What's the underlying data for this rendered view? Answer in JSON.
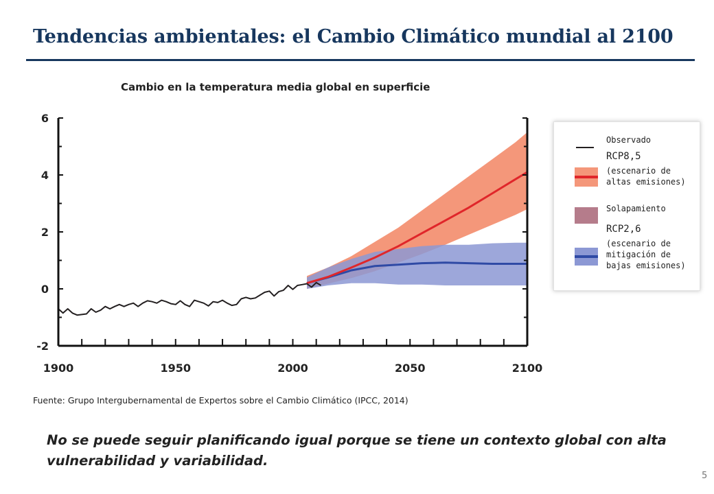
{
  "slide": {
    "title": "Tendencias ambientales: el Cambio Climático mundial al 2100",
    "source": "Fuente: Grupo Intergubernamental de Expertos sobre el Cambio Climático (IPCC, 2014)",
    "conclusion": "No se puede seguir planificando igual porque se tiene un contexto global con alta vulnerabilidad y variabilidad.",
    "page_number": "5"
  },
  "legend": {
    "observed": "Observado",
    "rcp85": {
      "name": "RCP8,5",
      "desc": [
        "(escenario de",
        "altas emisiones)"
      ]
    },
    "overlap": "Solapamiento",
    "rcp26": {
      "name": "RCP2,6",
      "desc": [
        "(escenario de",
        "mitigación de",
        "bajas emisiones)"
      ]
    }
  },
  "colors": {
    "title": "#17375e",
    "observed": "#231f20",
    "rcp85_line": "#e0262a",
    "rcp85_band": "#f4977a",
    "rcp26_line": "#2f4aa5",
    "rcp26_band": "#8c98d4",
    "overlap": "#b57c8b"
  },
  "chart_data": {
    "type": "line",
    "title": "Cambio en la temperatura media global en superficie",
    "xlim": [
      1900,
      2100
    ],
    "ylim": [
      -2,
      6
    ],
    "x_ticks": [
      "1900",
      "1950",
      "2000",
      "2050",
      "2100"
    ],
    "y_ticks": [
      "-2",
      "0",
      "2",
      "4",
      "6"
    ],
    "grid": false,
    "legend_position": "right",
    "series": [
      {
        "name": "Observado",
        "x": [
          1900,
          1902,
          1904,
          1906,
          1908,
          1910,
          1912,
          1914,
          1916,
          1918,
          1920,
          1922,
          1924,
          1926,
          1928,
          1930,
          1932,
          1934,
          1936,
          1938,
          1940,
          1942,
          1944,
          1946,
          1948,
          1950,
          1952,
          1954,
          1956,
          1958,
          1960,
          1962,
          1964,
          1966,
          1968,
          1970,
          1972,
          1974,
          1976,
          1978,
          1980,
          1982,
          1984,
          1986,
          1988,
          1990,
          1992,
          1994,
          1996,
          1998,
          2000,
          2002,
          2004,
          2006,
          2008,
          2010,
          2012
        ],
        "y": [
          -0.7,
          -0.85,
          -0.7,
          -0.85,
          -0.92,
          -0.9,
          -0.88,
          -0.7,
          -0.82,
          -0.75,
          -0.62,
          -0.7,
          -0.62,
          -0.55,
          -0.62,
          -0.55,
          -0.5,
          -0.62,
          -0.5,
          -0.42,
          -0.45,
          -0.5,
          -0.4,
          -0.45,
          -0.52,
          -0.55,
          -0.42,
          -0.55,
          -0.62,
          -0.4,
          -0.45,
          -0.5,
          -0.6,
          -0.45,
          -0.48,
          -0.4,
          -0.5,
          -0.58,
          -0.55,
          -0.35,
          -0.3,
          -0.35,
          -0.32,
          -0.22,
          -0.12,
          -0.08,
          -0.25,
          -0.1,
          -0.05,
          0.12,
          -0.02,
          0.12,
          0.15,
          0.18,
          0.06,
          0.22,
          0.12
        ]
      },
      {
        "name": "RCP8,5",
        "x": [
          2006,
          2015,
          2025,
          2035,
          2045,
          2055,
          2065,
          2075,
          2085,
          2095,
          2100
        ],
        "y": [
          0.2,
          0.42,
          0.75,
          1.1,
          1.5,
          1.95,
          2.4,
          2.85,
          3.35,
          3.85,
          4.1
        ],
        "y_low": [
          0.0,
          0.18,
          0.38,
          0.62,
          0.92,
          1.22,
          1.55,
          1.9,
          2.25,
          2.6,
          2.8
        ],
        "y_high": [
          0.45,
          0.75,
          1.15,
          1.65,
          2.15,
          2.75,
          3.35,
          3.95,
          4.55,
          5.15,
          5.5
        ]
      },
      {
        "name": "RCP2,6",
        "x": [
          2006,
          2015,
          2025,
          2035,
          2045,
          2055,
          2065,
          2075,
          2085,
          2095,
          2100
        ],
        "y": [
          0.2,
          0.4,
          0.65,
          0.8,
          0.85,
          0.9,
          0.92,
          0.9,
          0.88,
          0.88,
          0.88
        ],
        "y_low": [
          0.0,
          0.12,
          0.2,
          0.2,
          0.15,
          0.15,
          0.12,
          0.12,
          0.12,
          0.12,
          0.12
        ],
        "y_high": [
          0.4,
          0.75,
          1.05,
          1.3,
          1.4,
          1.5,
          1.55,
          1.55,
          1.6,
          1.62,
          1.62
        ]
      }
    ]
  }
}
